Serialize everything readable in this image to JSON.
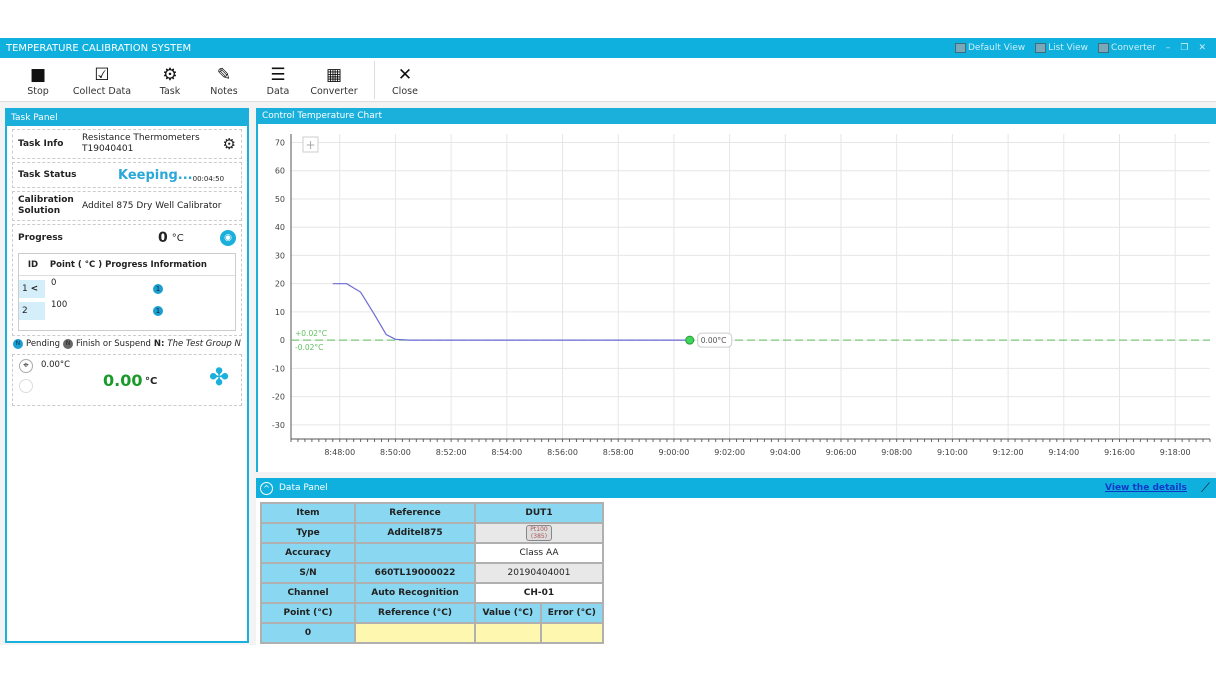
{
  "app": {
    "title": "TEMPERATURE CALIBRATION SYSTEM",
    "views": [
      "Default View",
      "List View",
      "Converter"
    ],
    "window_controls": [
      "minimize",
      "restore",
      "close"
    ]
  },
  "toolbar": [
    {
      "label": "Stop",
      "icon": "stop-icon"
    },
    {
      "label": "Collect Data",
      "icon": "checkbox-icon"
    },
    {
      "label": "Task",
      "icon": "gear-icon"
    },
    {
      "label": "Notes",
      "icon": "notes-icon"
    },
    {
      "label": "Data",
      "icon": "database-icon"
    },
    {
      "label": "Converter",
      "icon": "calculator-icon"
    },
    {
      "label": "Close",
      "icon": "close-icon"
    }
  ],
  "task_panel": {
    "title": "Task Panel",
    "task_info": {
      "label": "Task Info",
      "line1": "Resistance Thermometers",
      "line2": "T19040401"
    },
    "task_status": {
      "label": "Task Status",
      "status": "Keeping...",
      "elapsed": "00:04:50"
    },
    "calibration": {
      "label": "Calibration Solution",
      "value": "Additel 875 Dry Well Calibrator"
    },
    "progress": {
      "label": "Progress",
      "value": "0",
      "unit": "°C"
    },
    "table": {
      "headers": [
        "ID",
        "Point ( °C )",
        "Progress Information"
      ],
      "rows": [
        {
          "id": "1",
          "point": "0",
          "badge": "1"
        },
        {
          "id": "2",
          "point": "100",
          "badge": "1"
        }
      ]
    },
    "legend": {
      "pending_badge": "N",
      "pending": "Pending",
      "finish_badge": "N",
      "finish": "Finish or Suspend",
      "n_label": "N:",
      "n_text": "The Test Group N"
    },
    "setpoint": "0.00°C",
    "reading": "0.00",
    "reading_unit": "°C",
    "reading_color": "#1a9a2a"
  },
  "chart_panel": {
    "title": "Control Temperature Chart",
    "zoom_button": "+"
  },
  "chart_data": {
    "type": "line",
    "xlabel": "",
    "ylabel": "",
    "ylim": [
      -35,
      73
    ],
    "xlim": [
      "8:46:15",
      "9:19:15"
    ],
    "grid": true,
    "yticks": [
      70,
      60,
      50,
      40,
      30,
      20,
      10,
      0,
      -10,
      -20,
      -30
    ],
    "xticks": [
      "8:48:00",
      "8:50:00",
      "8:52:00",
      "8:54:00",
      "8:56:00",
      "8:58:00",
      "9:00:00",
      "9:02:00",
      "9:04:00",
      "9:06:00",
      "9:08:00",
      "9:10:00",
      "9:12:00",
      "9:14:00",
      "9:16:00",
      "9:18:00"
    ],
    "series": [
      {
        "color": "#6b6bd6",
        "points": [
          [
            "8:47:45",
            20
          ],
          [
            "8:48:15",
            20
          ],
          [
            "8:48:45",
            17
          ],
          [
            "8:49:15",
            9
          ],
          [
            "8:49:40",
            2
          ],
          [
            "8:50:00",
            0.3
          ],
          [
            "8:50:30",
            0
          ],
          [
            "9:00:34",
            0
          ]
        ]
      }
    ],
    "tolerance": {
      "upper": "+0.02°C",
      "lower": "-0.02°C",
      "color": "#5fbf5f"
    },
    "current": {
      "time": "9:00:34",
      "value": 0,
      "label": "0.00°C"
    }
  },
  "data_panel": {
    "title": "Data Panel",
    "view_details": "View the details",
    "rows": [
      [
        "Item",
        "Reference",
        "DUT1"
      ],
      [
        "Type",
        "Additel875",
        "Pt100 (385)"
      ],
      [
        "Accuracy",
        "",
        "Class AA"
      ],
      [
        "S/N",
        "660TL19000022",
        "20190404001"
      ],
      [
        "Channel",
        "Auto Recognition",
        "CH-01"
      ]
    ],
    "point_headers": [
      "Point (°C)",
      "Reference (°C)",
      "Value (°C)",
      "Error (°C)"
    ],
    "point_rows": [
      [
        "0",
        "",
        "",
        ""
      ]
    ]
  }
}
